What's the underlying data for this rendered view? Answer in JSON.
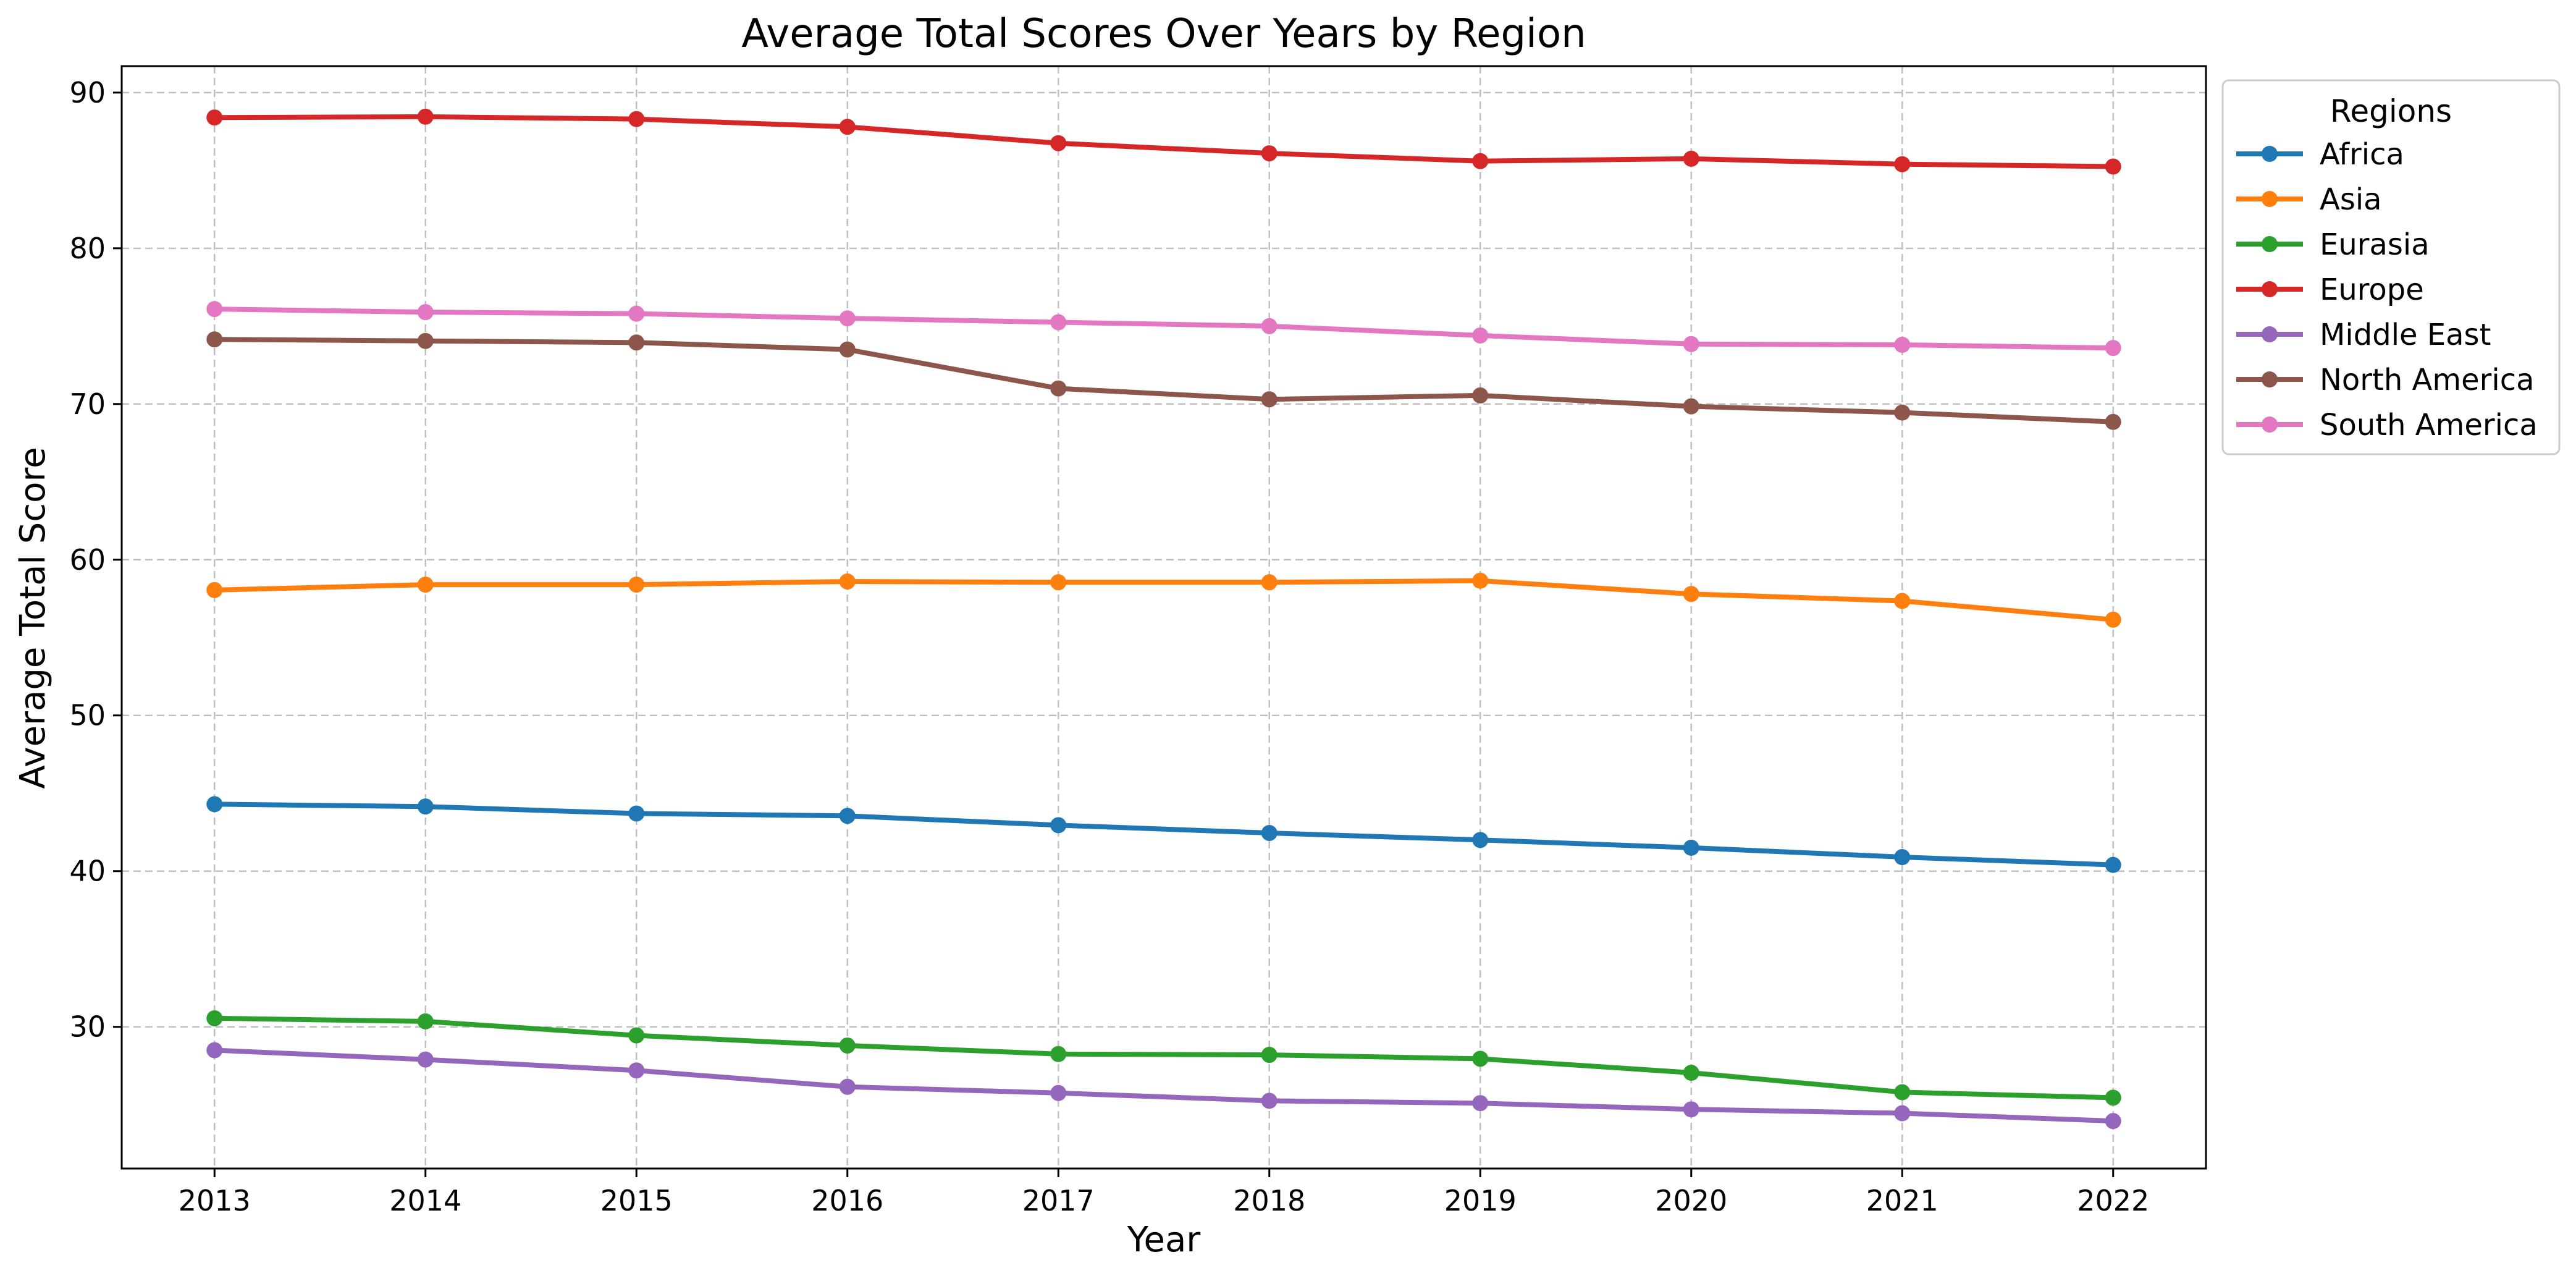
{
  "chart_data": {
    "type": "line",
    "title": "Average Total Scores Over Years by Region",
    "xlabel": "Year",
    "ylabel": "Average Total Score",
    "x": [
      2013,
      2014,
      2015,
      2016,
      2017,
      2018,
      2019,
      2020,
      2021,
      2022
    ],
    "xlim": [
      2012.56,
      2022.44
    ],
    "ylim": [
      20.9,
      91.7
    ],
    "yticks": [
      30,
      40,
      50,
      60,
      70,
      80,
      90
    ],
    "grid": true,
    "grid_style": "dashed",
    "markers": "circle",
    "legend": {
      "title": "Regions",
      "placement": "outside-top-right"
    },
    "series": [
      {
        "name": "Africa",
        "color": "#1f77b4",
        "values": [
          44.3,
          44.15,
          43.7,
          43.55,
          42.95,
          42.45,
          42.0,
          41.5,
          40.9,
          40.4
        ]
      },
      {
        "name": "Asia",
        "color": "#ff7f0e",
        "values": [
          58.05,
          58.4,
          58.4,
          58.6,
          58.55,
          58.55,
          58.65,
          57.8,
          57.35,
          56.15
        ]
      },
      {
        "name": "Eurasia",
        "color": "#2ca02c",
        "values": [
          30.55,
          30.35,
          29.45,
          28.8,
          28.25,
          28.2,
          27.95,
          27.05,
          25.8,
          25.45
        ]
      },
      {
        "name": "Europe",
        "color": "#d62728",
        "values": [
          88.4,
          88.45,
          88.3,
          87.8,
          86.75,
          86.1,
          85.6,
          85.75,
          85.4,
          85.25
        ]
      },
      {
        "name": "Middle East",
        "color": "#9467bd",
        "values": [
          28.5,
          27.9,
          27.2,
          26.15,
          25.75,
          25.25,
          25.1,
          24.7,
          24.45,
          23.95
        ]
      },
      {
        "name": "North America",
        "color": "#8c564b",
        "values": [
          74.15,
          74.05,
          73.95,
          73.5,
          71.0,
          70.3,
          70.55,
          69.85,
          69.45,
          68.85
        ]
      },
      {
        "name": "South America",
        "color": "#e377c2",
        "values": [
          76.1,
          75.9,
          75.8,
          75.5,
          75.25,
          75.0,
          74.4,
          73.85,
          73.8,
          73.6
        ]
      }
    ]
  }
}
